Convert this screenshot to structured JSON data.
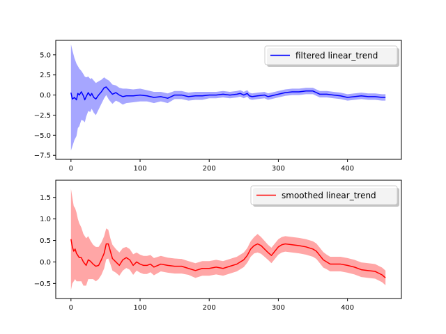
{
  "chart_data": [
    {
      "type": "line",
      "title": "",
      "xlabel": "",
      "ylabel": "",
      "xlim": [
        -22,
        478
      ],
      "ylim": [
        -8.0,
        6.8
      ],
      "xticks": [
        0,
        100,
        200,
        300,
        400
      ],
      "yticks": [
        -7.5,
        -5.0,
        -2.5,
        0.0,
        2.5,
        5.0
      ],
      "xtick_labels": [
        "0",
        "100",
        "200",
        "300",
        "400"
      ],
      "ytick_labels": [
        "−7.5",
        "−5.0",
        "−2.5",
        "0.0",
        "2.5",
        "5.0"
      ],
      "legend_position": "upper right",
      "grid": false,
      "series": [
        {
          "name": "filtered linear_trend",
          "color": "#0000ff",
          "band_color": "#0000ff",
          "band_opacity": 0.35,
          "x": [
            0,
            2,
            5,
            8,
            10,
            12,
            15,
            18,
            20,
            22,
            25,
            28,
            30,
            33,
            36,
            40,
            44,
            48,
            51,
            55,
            60,
            65,
            70,
            75,
            80,
            90,
            100,
            110,
            120,
            130,
            140,
            150,
            160,
            170,
            180,
            190,
            200,
            210,
            220,
            230,
            240,
            245,
            250,
            255,
            258,
            262,
            270,
            280,
            285,
            290,
            300,
            310,
            320,
            330,
            340,
            350,
            355,
            360,
            370,
            380,
            390,
            400,
            410,
            420,
            430,
            440,
            450,
            455
          ],
          "y": [
            0.3,
            -0.5,
            -0.3,
            -0.6,
            0.2,
            0.0,
            0.4,
            -0.1,
            -0.6,
            -0.2,
            0.3,
            -0.1,
            0.2,
            -0.3,
            -0.5,
            0.0,
            0.4,
            0.9,
            1.0,
            0.6,
            0.1,
            0.3,
            0.0,
            -0.2,
            -0.1,
            -0.1,
            0.0,
            -0.1,
            -0.3,
            -0.2,
            -0.4,
            0.0,
            0.0,
            -0.2,
            -0.1,
            -0.1,
            0.0,
            0.0,
            0.1,
            0.0,
            0.1,
            0.2,
            0.0,
            0.2,
            -0.1,
            -0.2,
            -0.1,
            0.0,
            -0.2,
            -0.1,
            0.1,
            0.3,
            0.4,
            0.4,
            0.5,
            0.5,
            0.3,
            0.1,
            0.1,
            0.0,
            -0.1,
            -0.3,
            -0.2,
            -0.1,
            -0.2,
            -0.2,
            -0.3,
            -0.3
          ],
          "upper": [
            6.3,
            5.6,
            4.6,
            3.9,
            3.6,
            3.3,
            3.0,
            2.6,
            2.3,
            2.2,
            2.3,
            2.0,
            2.1,
            1.8,
            1.5,
            1.7,
            1.9,
            2.2,
            2.0,
            1.8,
            1.3,
            1.2,
            0.9,
            0.8,
            0.8,
            0.7,
            0.8,
            0.6,
            0.4,
            0.4,
            0.2,
            0.5,
            0.5,
            0.3,
            0.4,
            0.4,
            0.4,
            0.4,
            0.5,
            0.4,
            0.5,
            0.6,
            0.4,
            0.6,
            0.3,
            0.2,
            0.3,
            0.4,
            0.2,
            0.3,
            0.5,
            0.7,
            0.8,
            0.8,
            0.9,
            0.9,
            0.7,
            0.5,
            0.5,
            0.4,
            0.3,
            0.1,
            0.2,
            0.3,
            0.2,
            0.2,
            0.1,
            0.1
          ],
          "lower": [
            -6.9,
            -6.4,
            -5.6,
            -5.1,
            -4.1,
            -3.9,
            -3.1,
            -3.2,
            -3.4,
            -2.7,
            -2.0,
            -2.1,
            -1.7,
            -2.2,
            -2.5,
            -1.8,
            -1.1,
            -0.4,
            0.0,
            -0.6,
            -1.1,
            -0.7,
            -0.9,
            -1.2,
            -1.0,
            -0.9,
            -0.8,
            -0.8,
            -1.0,
            -0.8,
            -1.0,
            -0.5,
            -0.5,
            -0.7,
            -0.6,
            -0.6,
            -0.4,
            -0.4,
            -0.3,
            -0.4,
            -0.3,
            -0.2,
            -0.4,
            -0.2,
            -0.5,
            -0.6,
            -0.5,
            -0.4,
            -0.6,
            -0.5,
            -0.3,
            -0.1,
            0.0,
            0.0,
            0.1,
            0.1,
            -0.1,
            -0.3,
            -0.3,
            -0.4,
            -0.5,
            -0.7,
            -0.6,
            -0.5,
            -0.6,
            -0.6,
            -0.7,
            -0.7
          ]
        }
      ]
    },
    {
      "type": "line",
      "title": "",
      "xlabel": "",
      "ylabel": "",
      "xlim": [
        -22,
        478
      ],
      "ylim": [
        -0.85,
        1.9
      ],
      "xticks": [
        0,
        100,
        200,
        300,
        400
      ],
      "yticks": [
        -0.5,
        0.0,
        0.5,
        1.0,
        1.5
      ],
      "xtick_labels": [
        "0",
        "100",
        "200",
        "300",
        "400"
      ],
      "ytick_labels": [
        "−0.5",
        "0.0",
        "0.5",
        "1.0",
        "1.5"
      ],
      "legend_position": "upper right",
      "grid": false,
      "series": [
        {
          "name": "smoothed linear_trend",
          "color": "#ff0000",
          "band_color": "#ff0000",
          "band_opacity": 0.35,
          "x": [
            0,
            2,
            4,
            6,
            8,
            10,
            12,
            15,
            18,
            22,
            25,
            28,
            32,
            36,
            40,
            44,
            48,
            51,
            54,
            57,
            60,
            65,
            70,
            75,
            80,
            85,
            90,
            95,
            100,
            105,
            110,
            115,
            120,
            130,
            140,
            150,
            160,
            170,
            180,
            190,
            200,
            210,
            220,
            230,
            240,
            250,
            255,
            260,
            265,
            270,
            275,
            280,
            285,
            290,
            295,
            300,
            305,
            310,
            320,
            330,
            340,
            350,
            355,
            360,
            365,
            370,
            375,
            380,
            390,
            400,
            410,
            420,
            430,
            440,
            450,
            455
          ],
          "y": [
            0.53,
            0.35,
            0.25,
            0.3,
            0.2,
            0.15,
            0.1,
            0.1,
            0.0,
            -0.08,
            0.05,
            0.02,
            -0.05,
            -0.1,
            -0.08,
            0.05,
            0.2,
            0.42,
            0.42,
            0.25,
            0.08,
            0.0,
            -0.08,
            0.05,
            0.1,
            0.05,
            -0.08,
            0.0,
            -0.05,
            -0.08,
            -0.08,
            -0.05,
            -0.12,
            -0.05,
            -0.08,
            -0.1,
            -0.1,
            -0.15,
            -0.2,
            -0.15,
            -0.15,
            -0.12,
            -0.15,
            -0.1,
            -0.05,
            0.05,
            0.15,
            0.3,
            0.38,
            0.42,
            0.38,
            0.3,
            0.22,
            0.15,
            0.25,
            0.35,
            0.4,
            0.42,
            0.4,
            0.38,
            0.35,
            0.3,
            0.25,
            0.15,
            0.05,
            0.0,
            -0.05,
            -0.05,
            -0.05,
            -0.08,
            -0.12,
            -0.18,
            -0.2,
            -0.22,
            -0.3,
            -0.37
          ],
          "upper": [
            1.7,
            1.5,
            1.3,
            1.25,
            1.15,
            1.0,
            0.9,
            0.8,
            0.65,
            0.55,
            0.6,
            0.5,
            0.4,
            0.35,
            0.35,
            0.45,
            0.6,
            0.78,
            0.75,
            0.55,
            0.4,
            0.3,
            0.22,
            0.32,
            0.35,
            0.3,
            0.18,
            0.22,
            0.17,
            0.14,
            0.14,
            0.16,
            0.09,
            0.14,
            0.1,
            0.08,
            0.07,
            0.02,
            -0.03,
            0.02,
            0.02,
            0.05,
            0.02,
            0.07,
            0.12,
            0.22,
            0.32,
            0.48,
            0.58,
            0.65,
            0.58,
            0.49,
            0.4,
            0.33,
            0.43,
            0.53,
            0.58,
            0.6,
            0.58,
            0.56,
            0.53,
            0.48,
            0.43,
            0.33,
            0.23,
            0.17,
            0.12,
            0.12,
            0.12,
            0.09,
            0.05,
            -0.01,
            -0.03,
            -0.05,
            -0.13,
            -0.2
          ],
          "lower": [
            -0.65,
            -0.5,
            -0.45,
            -0.4,
            -0.45,
            -0.45,
            -0.45,
            -0.45,
            -0.55,
            -0.55,
            -0.4,
            -0.4,
            -0.4,
            -0.45,
            -0.4,
            -0.3,
            -0.15,
            0.06,
            0.08,
            -0.05,
            -0.2,
            -0.25,
            -0.32,
            -0.2,
            -0.14,
            -0.18,
            -0.3,
            -0.2,
            -0.25,
            -0.28,
            -0.28,
            -0.24,
            -0.31,
            -0.22,
            -0.25,
            -0.27,
            -0.27,
            -0.3,
            -0.37,
            -0.32,
            -0.32,
            -0.29,
            -0.32,
            -0.27,
            -0.22,
            -0.12,
            -0.02,
            0.12,
            0.2,
            0.22,
            0.19,
            0.12,
            0.05,
            -0.03,
            0.07,
            0.17,
            0.22,
            0.24,
            0.22,
            0.2,
            0.17,
            0.12,
            0.07,
            -0.03,
            -0.13,
            -0.17,
            -0.22,
            -0.22,
            -0.22,
            -0.25,
            -0.29,
            -0.35,
            -0.37,
            -0.39,
            -0.47,
            -0.54
          ]
        }
      ]
    }
  ]
}
